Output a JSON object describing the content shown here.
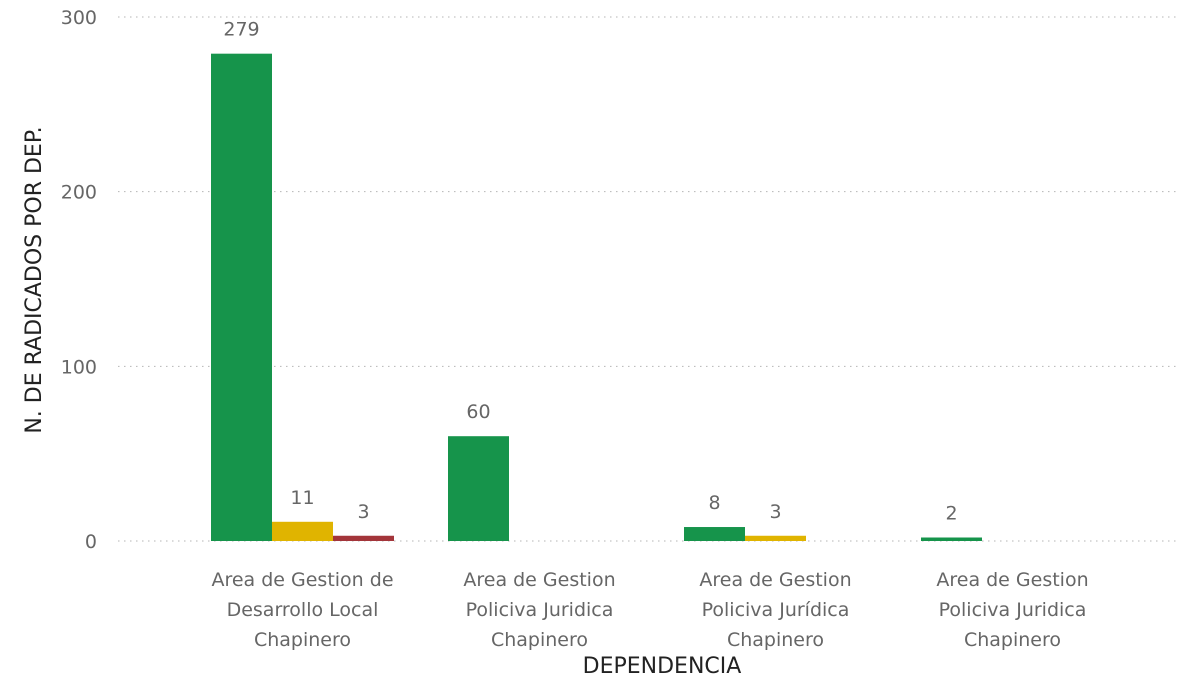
{
  "chart_data": {
    "type": "bar",
    "title": "",
    "xlabel": "DEPENDENCIA",
    "ylabel": "N. DE RADICADOS POR DEP.",
    "ylim": [
      0,
      300
    ],
    "yticks": [
      0,
      100,
      200,
      300
    ],
    "grid": true,
    "categories": [
      [
        "Area de Gestion de",
        "Desarrollo Local",
        "Chapinero"
      ],
      [
        "Area de Gestion",
        "Policiva Juridica",
        "Chapinero"
      ],
      [
        "Area de Gestion",
        "Policiva Jurídica",
        "Chapinero"
      ],
      [
        "Area de Gestion",
        "Policiva Juridica",
        "Chapinero"
      ]
    ],
    "series": [
      {
        "color": "#16944b",
        "values": [
          279,
          60,
          8,
          2
        ]
      },
      {
        "color": "#e0b400",
        "values": [
          11,
          null,
          3,
          null
        ]
      },
      {
        "color": "#a3353a",
        "values": [
          3,
          null,
          null,
          null
        ]
      }
    ]
  }
}
